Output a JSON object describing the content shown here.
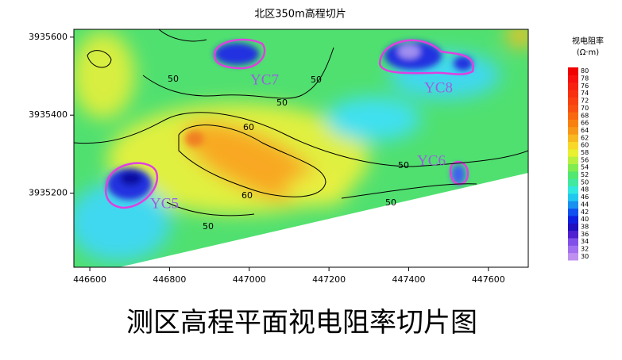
{
  "chart_data": {
    "type": "contour-map",
    "title": "北区350m高程切片",
    "caption": "测区高程平面视电阻率切片图",
    "xlim": [
      446560,
      447700
    ],
    "xticks": [
      446600,
      446800,
      447000,
      447200,
      447400,
      447600
    ],
    "ylim": [
      3935010,
      3935620
    ],
    "yticks": [
      3935200,
      3935400,
      3935600
    ],
    "colorbar_title": "视电阻率",
    "colorbar_unit": "(Ω·m)",
    "colorbar_ticks": [
      30,
      32,
      34,
      36,
      38,
      40,
      42,
      44,
      46,
      48,
      50,
      52,
      54,
      56,
      58,
      60,
      62,
      64,
      66,
      68,
      70,
      72,
      74,
      76,
      78,
      80
    ],
    "colorbar_colors": [
      "#c090f0",
      "#a070f0",
      "#8050e8",
      "#5020d0",
      "#2010c0",
      "#1020e0",
      "#1050f0",
      "#1890f0",
      "#20c8f0",
      "#30e8e0",
      "#40e8a0",
      "#50e870",
      "#80ec50",
      "#b8f040",
      "#e8f030",
      "#f8d828",
      "#f8b820",
      "#f89818",
      "#f88010",
      "#f86810",
      "#f85010",
      "#f84010",
      "#f83010",
      "#f82010",
      "#f81010",
      "#f00000"
    ],
    "contour_labels": [
      50,
      50,
      50,
      50,
      60,
      60,
      50,
      50
    ],
    "annotations": [
      "YC5",
      "YC6",
      "YC7",
      "YC8"
    ]
  }
}
